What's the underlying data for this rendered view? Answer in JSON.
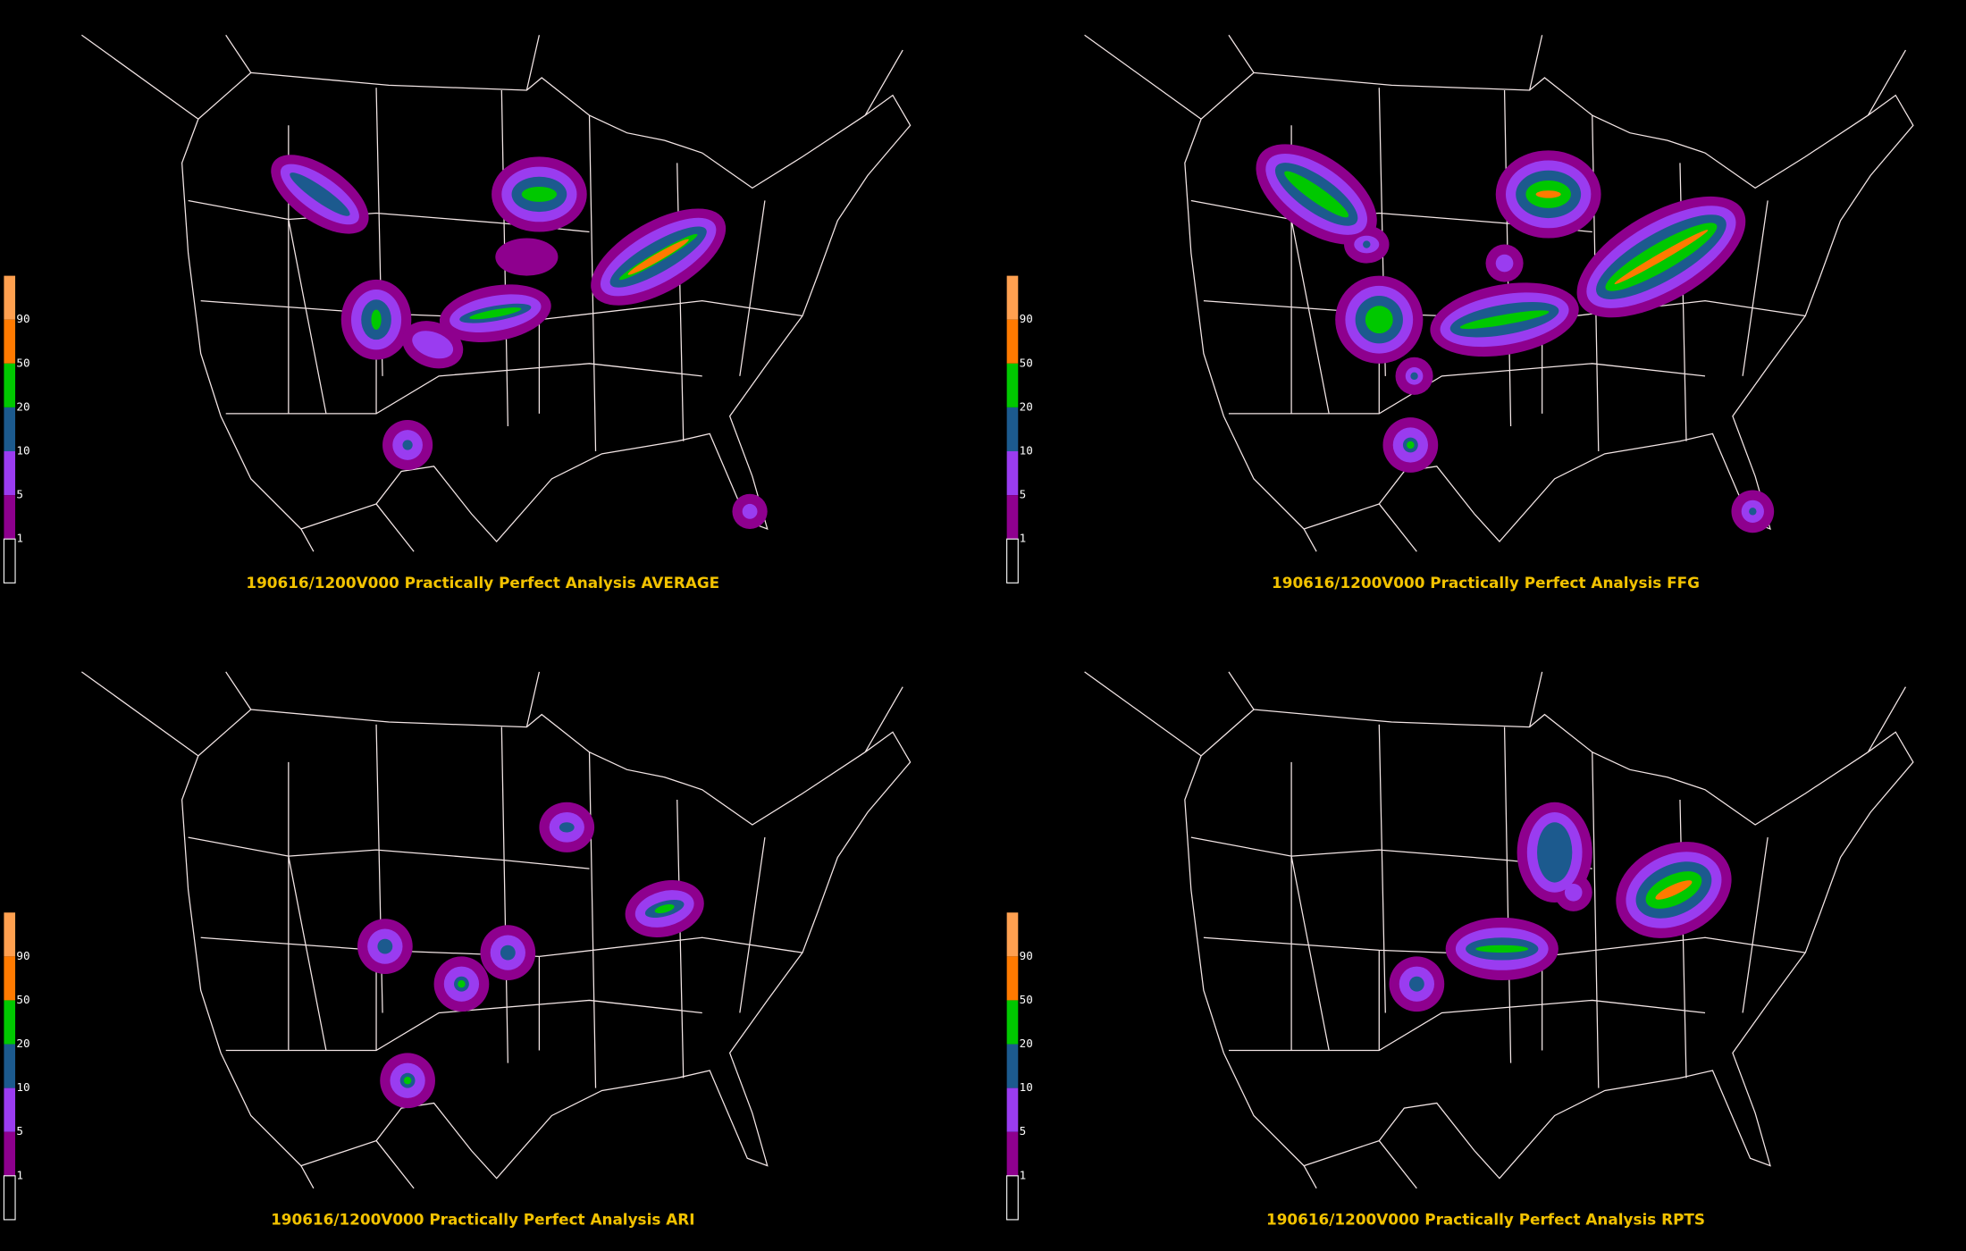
{
  "panels": [
    {
      "title": "190616/1200V000 Practically Perfect Analysis AVERAGE"
    },
    {
      "title": "190616/1200V000 Practically Perfect Analysis FFG"
    },
    {
      "title": "190616/1200V000 Practically Perfect Analysis ARI"
    },
    {
      "title": "190616/1200V000 Practically Perfect Analysis RPTS"
    }
  ],
  "legend": {
    "labels": [
      "90",
      "50",
      "20",
      "10",
      "5",
      "1"
    ]
  }
}
